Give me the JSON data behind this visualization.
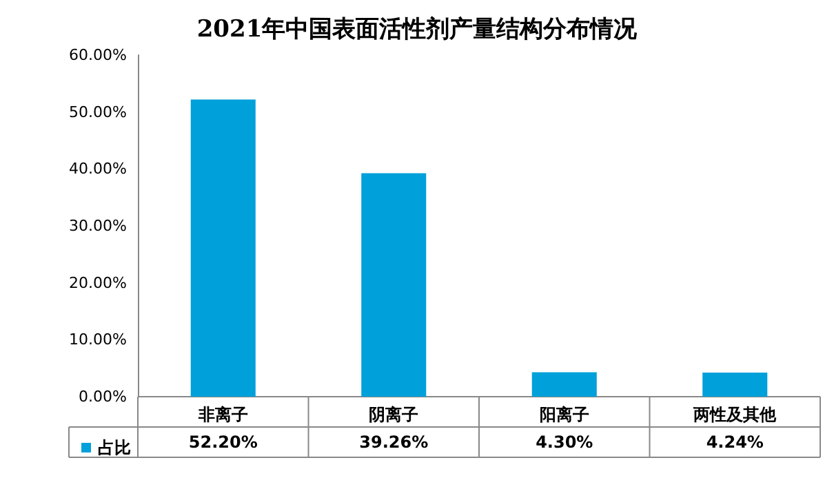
{
  "chart_data": {
    "type": "bar",
    "title": "2021年中国表面活性剂产量结构分布情况",
    "categories": [
      "非离子",
      "阴离子",
      "阳离子",
      "两性及其他"
    ],
    "series": [
      {
        "name": "占比",
        "color": "#00a0da",
        "values": [
          52.2,
          39.26,
          4.3,
          4.24
        ],
        "value_labels": [
          "52.20%",
          "39.26%",
          "4.30%",
          "4.24%"
        ]
      }
    ],
    "ylim": [
      0,
      60
    ],
    "yticks": [
      {
        "value": 0,
        "label": "0.00%"
      },
      {
        "value": 10,
        "label": "10.00%"
      },
      {
        "value": 20,
        "label": "20.00%"
      },
      {
        "value": 30,
        "label": "30.00%"
      },
      {
        "value": 40,
        "label": "40.00%"
      },
      {
        "value": 50,
        "label": "50.00%"
      },
      {
        "value": 60,
        "label": "60.00%"
      }
    ],
    "grid": false,
    "legend": "bottom left"
  }
}
